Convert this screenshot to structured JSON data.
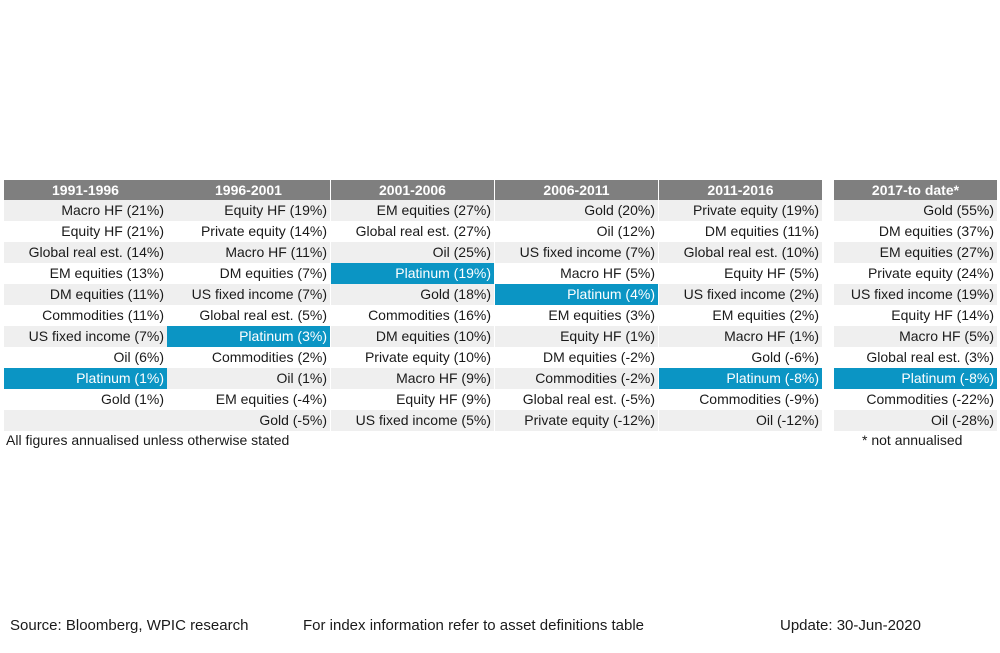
{
  "chart_data": {
    "type": "table",
    "columns": [
      {
        "header": "1991-1996",
        "cells": [
          "Macro HF (21%)",
          "Equity HF (21%)",
          "Global real est. (14%)",
          "EM equities (13%)",
          "DM equities (11%)",
          "Commodities (11%)",
          "US fixed income (7%)",
          "Oil (6%)",
          "Platinum (1%)",
          "Gold (1%)",
          ""
        ],
        "highlight_row": 8
      },
      {
        "header": "1996-2001",
        "cells": [
          "Equity HF (19%)",
          "Private equity (14%)",
          "Macro HF (11%)",
          "DM equities (7%)",
          "US fixed income (7%)",
          "Global real est. (5%)",
          "Platinum (3%)",
          "Commodities (2%)",
          "Oil (1%)",
          "EM equities (-4%)",
          "Gold (-5%)"
        ],
        "highlight_row": 6
      },
      {
        "header": "2001-2006",
        "cells": [
          "EM equities (27%)",
          "Global real est. (27%)",
          "Oil (25%)",
          "Platinum (19%)",
          "Gold (18%)",
          "Commodities (16%)",
          "DM equities (10%)",
          "Private equity (10%)",
          "Macro HF (9%)",
          "Equity HF (9%)",
          "US fixed income (5%)"
        ],
        "highlight_row": 3
      },
      {
        "header": "2006-2011",
        "cells": [
          "Gold (20%)",
          "Oil (12%)",
          "US fixed income (7%)",
          "Macro HF (5%)",
          "Platinum (4%)",
          "EM equities (3%)",
          "Equity HF (1%)",
          "DM equities (-2%)",
          "Commodities (-2%)",
          "Global real est. (-5%)",
          "Private equity (-12%)"
        ],
        "highlight_row": 4
      },
      {
        "header": "2011-2016",
        "cells": [
          "Private equity (19%)",
          "DM equities (11%)",
          "Global real est. (10%)",
          "Equity HF (5%)",
          "US fixed income (2%)",
          "EM equities (2%)",
          "Macro HF (1%)",
          "Gold (-6%)",
          "Platinum (-8%)",
          "Commodities (-9%)",
          "Oil (-12%)"
        ],
        "highlight_row": 8
      },
      {
        "header": "2017-to date*",
        "cells": [
          "Gold (55%)",
          "DM equities (37%)",
          "EM equities (27%)",
          "Private equity (24%)",
          "US fixed income (19%)",
          "Equity HF (14%)",
          "Macro HF (5%)",
          "Global real est. (3%)",
          "Platinum (-8%)",
          "Commodities (-22%)",
          "Oil (-28%)"
        ],
        "highlight_row": 8
      }
    ],
    "colors": {
      "header_bg": "#7f7f7f",
      "highlight": "#0b95c4",
      "alt_row": "#efefef"
    }
  },
  "notes": {
    "annualised": "All figures annualised unless otherwise stated",
    "not_annualised": "* not annualised"
  },
  "footer": {
    "source": "Source: Bloomberg, WPIC research",
    "index_info": "For index information refer to asset definitions table",
    "update": "Update: 30-Jun-2020"
  }
}
